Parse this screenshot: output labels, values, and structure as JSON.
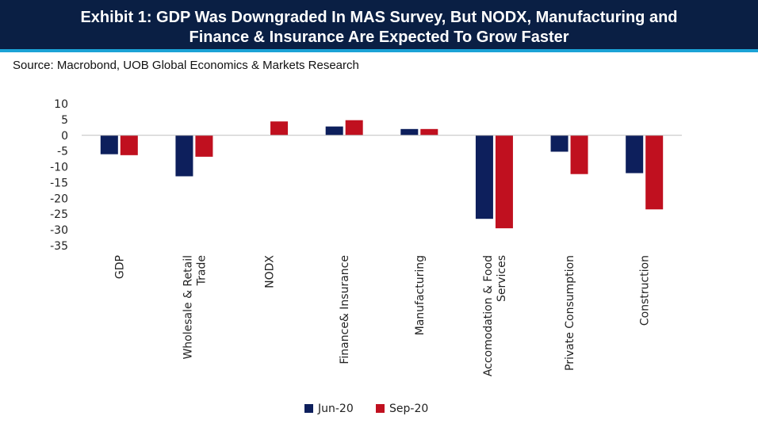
{
  "header": {
    "title_line1": "Exhibit 1: GDP Was Downgraded In MAS Survey, But NODX, Manufacturing and",
    "title_line2": "Finance & Insurance Are Expected To Grow Faster",
    "source": "Source: Macrobond, UOB Global Economics & Markets Research"
  },
  "colors": {
    "title_bg": "#0a1f44",
    "title_accent": "#1ba3d6",
    "series_jun": "#0d1f5c",
    "series_sep": "#c0101f"
  },
  "chart_data": {
    "type": "bar",
    "title": "",
    "xlabel": "",
    "ylabel": "",
    "ylim": [
      -35,
      10
    ],
    "yticks": [
      10,
      5,
      0,
      -5,
      -10,
      -15,
      -20,
      -25,
      -30,
      -35
    ],
    "ytick_labels": [
      "10",
      "5",
      "0",
      "-5",
      "-10",
      "-15",
      "-20",
      "-25",
      "-30",
      "-35"
    ],
    "categories": [
      "GDP",
      "Wholesale & Retail Trade",
      "NODX",
      "Finance& Insurance",
      "Manufacturing",
      "Accomodation & Food Services",
      "Private Consumption",
      "Construction"
    ],
    "category_label_lines": [
      [
        "GDP"
      ],
      [
        "Wholesale & Retail",
        "Trade"
      ],
      [
        "NODX"
      ],
      [
        "Finance& Insurance"
      ],
      [
        "Manufacturing"
      ],
      [
        "Accomodation & Food",
        "Services"
      ],
      [
        "Private Consumption"
      ],
      [
        "Construction"
      ]
    ],
    "series": [
      {
        "name": "Jun-20",
        "color": "#0d1f5c",
        "values": [
          -6.0,
          -13.0,
          null,
          2.8,
          2.0,
          -26.5,
          -5.2,
          -12.0
        ]
      },
      {
        "name": "Sep-20",
        "color": "#c0101f",
        "values": [
          -6.3,
          -6.8,
          4.4,
          4.8,
          2.0,
          -29.5,
          -12.3,
          -23.5
        ]
      }
    ],
    "grid": false,
    "legend_position": "bottom-center"
  }
}
